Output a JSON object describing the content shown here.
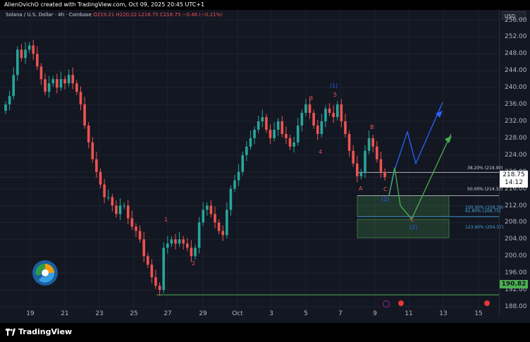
{
  "header": {
    "attribution": "AlienOvichO created with TradingView.com, Oct 09, 2025 20:45 UTC+1"
  },
  "legend": {
    "symbol": "Solana / U.S. Dollar · 4h · Coinbase",
    "ohlc": "O219.21 H220.22 L216.75 C218.75 −0.46 (−0.21%)"
  },
  "currency_button": "USD",
  "price_box": {
    "price": "218.75",
    "countdown": "14:12"
  },
  "support_box": "190.82",
  "fib_labels": {
    "f38": "38.20% (219.90)",
    "f50": "50.00% (214.33)",
    "f100": "100.00% (209.39)",
    "f618": "61.80% (208.75)",
    "f1236": "123.60% (204.37)"
  },
  "wave_labels": {
    "w1": "1",
    "w2": "2",
    "w3": "3",
    "w4": "4",
    "w5": "5",
    "w_big1": "(1)",
    "wA": "A",
    "wB": "B",
    "wC": "C",
    "w_big2_a": "(2)",
    "wC2": "C",
    "w_big2_b": "(2)"
  },
  "footer": {
    "brand": "TradingView"
  },
  "chart_data": {
    "type": "candlestick",
    "title": "Solana / U.S. Dollar · 4h · Coinbase",
    "ylim": [
      186,
      259
    ],
    "y_ticks": [
      188,
      192,
      196,
      200,
      204,
      208,
      212,
      216,
      220,
      224,
      228,
      232,
      236,
      240,
      244,
      248,
      252,
      256
    ],
    "x_ticks": [
      "19",
      "21",
      "23",
      "25",
      "27",
      "29",
      "Oct",
      "3",
      "5",
      "7",
      "9",
      "11",
      "13",
      "15"
    ],
    "colors": {
      "up": "#26a69a",
      "down": "#ef5350",
      "background": "#131722",
      "grid": "#1e222d"
    },
    "close_series": [
      236,
      238,
      243,
      249,
      247,
      249,
      250,
      248,
      245,
      242,
      239,
      241,
      242,
      240,
      242,
      241,
      243,
      241,
      239,
      236,
      231,
      227,
      223,
      220,
      217,
      214,
      214,
      212,
      210,
      212,
      212,
      209,
      207,
      206,
      204,
      200,
      198,
      195,
      193,
      192,
      202,
      203,
      204,
      203,
      204,
      203,
      202,
      200,
      202,
      208,
      211,
      212,
      210,
      208,
      206,
      205,
      211,
      216,
      218,
      220,
      224,
      226,
      228,
      230,
      232,
      233,
      230,
      228,
      230,
      232,
      229,
      228,
      226,
      227,
      231,
      234,
      236,
      234,
      231,
      229,
      232,
      235,
      234,
      233,
      236,
      232,
      229,
      225,
      222,
      219,
      220,
      225,
      228,
      226,
      223,
      220,
      218.75
    ],
    "last_price": 218.75,
    "support_level": 190.82,
    "fibonacci_levels": [
      {
        "ratio": "38.20%",
        "price": 219.9
      },
      {
        "ratio": "50.00%",
        "price": 214.33
      },
      {
        "ratio": "100.00%",
        "price": 209.39
      },
      {
        "ratio": "61.80%",
        "price": 208.75
      },
      {
        "ratio": "123.60%",
        "price": 204.37
      }
    ],
    "projection_blue": [
      [
        218.5,
        220.5
      ],
      [
        224.5,
        223
      ],
      [
        232.5,
        236
      ]
    ],
    "projection_green": [
      [
        218.5,
        219
      ],
      [
        221,
        212
      ],
      [
        224,
        209
      ],
      [
        233,
        229
      ]
    ],
    "wave_points": [
      {
        "label": "1",
        "x": 27.3,
        "price": 206
      },
      {
        "label": "2",
        "x": 28.5,
        "price": 198
      },
      {
        "label": "3",
        "x": 5.6,
        "price": 236
      },
      {
        "label": "4",
        "x": 6.1,
        "price": 225
      },
      {
        "label": "5",
        "x": 6.8,
        "price": 238
      },
      {
        "label": "(1)",
        "x": 6.8,
        "price": 241
      },
      {
        "label": "A",
        "x": 8.0,
        "price": 216
      },
      {
        "label": "B",
        "x": 8.9,
        "price": 229
      },
      {
        "label": "C",
        "x": 9.6,
        "price": 216
      },
      {
        "label": "(2)",
        "x": 9.6,
        "price": 213
      },
      {
        "label": "C",
        "x": 10.8,
        "price": 206
      },
      {
        "label": "(2)",
        "x": 11.2,
        "price": 203
      }
    ]
  }
}
